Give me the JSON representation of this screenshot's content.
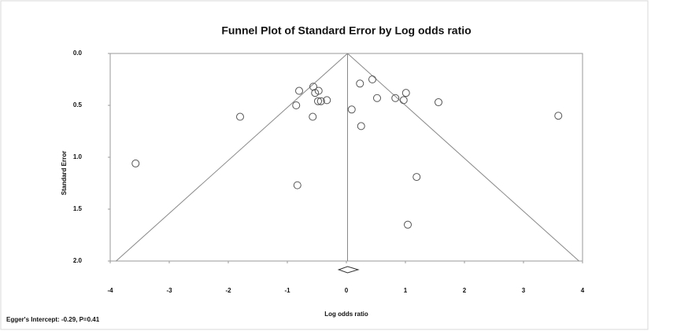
{
  "chart_data": {
    "type": "scatter",
    "title": "Funnel Plot of Standard Error by Log odds ratio",
    "x_label": "Log odds ratio",
    "y_label": "Standard Error",
    "footnote": "Egger's Intercept: -0.29, P=0.41",
    "xlim": [
      -4,
      4
    ],
    "xticks": [
      -4,
      -3,
      -2,
      -1,
      0,
      1,
      2,
      3,
      4
    ],
    "ylim": [
      0,
      2
    ],
    "y_reversed": true,
    "yticks": [
      {
        "value": 0,
        "label": "0.0"
      },
      0.5,
      {
        "value": 1,
        "label": "1.0"
      },
      1.5,
      {
        "value": 2,
        "label": "2.0"
      }
    ],
    "marker_color": "#555555",
    "x": [
      -3.57,
      -1.8,
      -0.83,
      -0.8,
      -0.85,
      -0.56,
      -0.53,
      -0.47,
      -0.48,
      -0.43,
      -0.33,
      -0.57,
      0.09,
      0.23,
      0.25,
      0.44,
      0.52,
      0.83,
      0.97,
      1.01,
      1.19,
      1.04,
      1.56,
      3.59
    ],
    "y": [
      1.06,
      0.61,
      1.27,
      0.36,
      0.5,
      0.32,
      0.38,
      0.36,
      0.46,
      0.46,
      0.45,
      0.61,
      0.54,
      0.29,
      0.7,
      0.25,
      0.43,
      0.43,
      0.45,
      0.38,
      1.19,
      1.65,
      0.47,
      0.6
    ],
    "funnel": {
      "center": 0.02,
      "bottom_left": -3.9,
      "bottom_right": 3.94
    },
    "summary": {
      "estimate": 0.02,
      "lower": -0.13,
      "upper": 0.2
    }
  }
}
